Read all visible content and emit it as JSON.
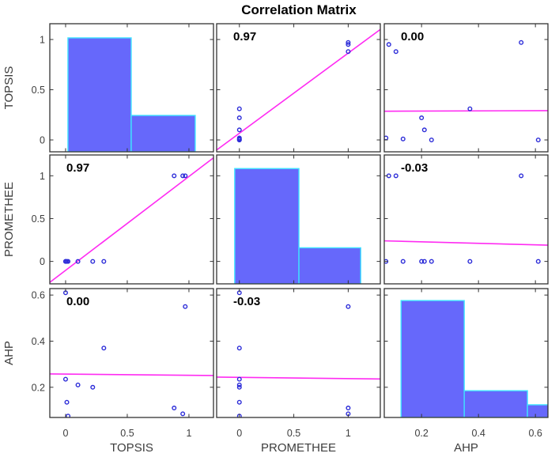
{
  "header": {
    "title": "Correlation Matrix"
  },
  "chart_data": {
    "type": "scatter_matrix",
    "title": "Correlation Matrix",
    "layout": "3x3 matrix; histograms on diagonal, pairwise scatter with least-squares fit line off-diagonal, correlation coefficient printed top-left of each scatter panel",
    "grid": false,
    "legend_position": "none",
    "variables": [
      {
        "name": "TOPSIS",
        "ticks": [
          0,
          0.5,
          1
        ],
        "tick_labels": [
          "0",
          "0.5",
          "1"
        ],
        "x_range": [
          -0.128,
          1.199
        ],
        "y_range": [
          -0.118,
          1.157
        ]
      },
      {
        "name": "PROMETHEE",
        "ticks": [
          0,
          0.5,
          1
        ],
        "tick_labels": [
          "0",
          "0.5",
          "1"
        ],
        "x_range": [
          -0.209,
          1.295
        ],
        "y_range": [
          -0.262,
          1.243
        ]
      },
      {
        "name": "AHP",
        "ticks": [
          0.2,
          0.4,
          0.6
        ],
        "tick_labels": [
          "0.2",
          "0.4",
          "0.6"
        ],
        "x_range": [
          0.069,
          0.644
        ],
        "y_range": [
          0.069,
          0.628
        ]
      }
    ],
    "observations": [
      {
        "TOPSIS": 0.0,
        "PROMETHEE": 0,
        "AHP": 0.61
      },
      {
        "TOPSIS": 0.0,
        "PROMETHEE": 0,
        "AHP": 0.235
      },
      {
        "TOPSIS": 0.01,
        "PROMETHEE": 0,
        "AHP": 0.135
      },
      {
        "TOPSIS": 0.02,
        "PROMETHEE": 0,
        "AHP": 0.075
      },
      {
        "TOPSIS": 0.1,
        "PROMETHEE": 0,
        "AHP": 0.21
      },
      {
        "TOPSIS": 0.22,
        "PROMETHEE": 0,
        "AHP": 0.2
      },
      {
        "TOPSIS": 0.31,
        "PROMETHEE": 0,
        "AHP": 0.37
      },
      {
        "TOPSIS": 0.88,
        "PROMETHEE": 1,
        "AHP": 0.11
      },
      {
        "TOPSIS": 0.95,
        "PROMETHEE": 1,
        "AHP": 0.085
      },
      {
        "TOPSIS": 0.97,
        "PROMETHEE": 1,
        "AHP": 0.55
      }
    ],
    "correlation_labels": [
      [
        "",
        "0.97",
        "0.00"
      ],
      [
        "0.97",
        "",
        "-0.03"
      ],
      [
        "0.00",
        "-0.03",
        ""
      ]
    ],
    "histograms": [
      [
        {
          "x0": 0.019,
          "x1": 0.532,
          "top": 1.016
        },
        {
          "x0": 0.532,
          "x1": 1.051,
          "top": 0.244
        }
      ],
      [
        {
          "x0": -0.043,
          "x1": 0.547,
          "top": 1.084
        },
        {
          "x0": 0.547,
          "x1": 1.115,
          "top": 0.159
        }
      ],
      [
        {
          "x0": 0.128,
          "x1": 0.35,
          "top": 0.576
        },
        {
          "x0": 0.35,
          "x1": 0.572,
          "top": 0.185
        },
        {
          "x0": 0.572,
          "x1": 0.7,
          "top": 0.124
        }
      ]
    ],
    "fit_lines": [
      {
        "row": 0,
        "col": 1,
        "x": [
          -0.209,
          1.295
        ],
        "y": [
          -0.1,
          1.1
        ]
      },
      {
        "row": 0,
        "col": 2,
        "x": [
          0.069,
          0.644
        ],
        "y": [
          0.286,
          0.292
        ]
      },
      {
        "row": 1,
        "col": 0,
        "x": [
          -0.128,
          1.199
        ],
        "y": [
          -0.245,
          1.21
        ]
      },
      {
        "row": 1,
        "col": 2,
        "x": [
          0.069,
          0.644
        ],
        "y": [
          0.24,
          0.19
        ]
      },
      {
        "row": 2,
        "col": 0,
        "x": [
          -0.128,
          1.199
        ],
        "y": [
          0.258,
          0.251
        ]
      },
      {
        "row": 2,
        "col": 1,
        "x": [
          -0.209,
          1.295
        ],
        "y": [
          0.244,
          0.236
        ]
      }
    ],
    "colors": {
      "histogram_fill": "#6668fb",
      "histogram_edge": "#3fe4ff",
      "marker": "#2b2bd8",
      "fit_line": "#ff2bf2",
      "panel_border": "#333333",
      "title_text": "#000000",
      "axis_text": "#3d3d3d",
      "background": "#ffffff"
    }
  }
}
